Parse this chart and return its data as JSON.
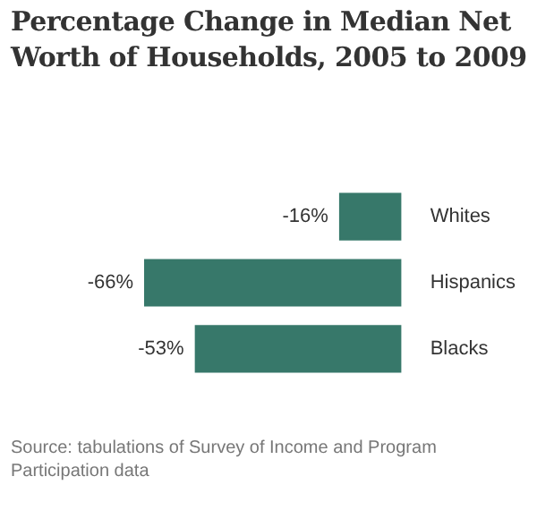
{
  "chart_data": {
    "type": "bar",
    "orientation": "horizontal",
    "title": "Percentage Change in Median Net Worth of Households, 2005 to 2009",
    "categories": [
      "Whites",
      "Hispanics",
      "Blacks"
    ],
    "values": [
      -16,
      -66,
      -53
    ],
    "value_labels": [
      "-16%",
      "-66%",
      "-53%"
    ],
    "color": "#37786a",
    "legend": false,
    "tick_labels": "y",
    "annotations": [
      "Source: tabulations of Survey of Income and Program Participation data"
    ]
  }
}
